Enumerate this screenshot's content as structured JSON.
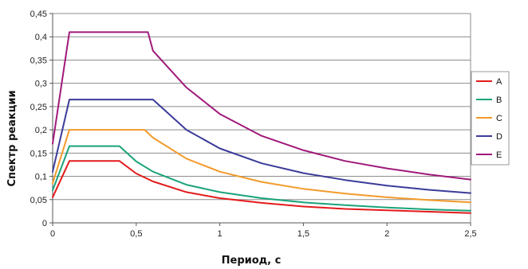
{
  "chart_data": {
    "type": "line",
    "xlabel": "Период, с",
    "ylabel": "Спектр реакции",
    "xlim": [
      0,
      2.5
    ],
    "ylim": [
      0,
      0.45
    ],
    "xticks": [
      0,
      0.5,
      1,
      1.5,
      2,
      2.5
    ],
    "xtick_labels": [
      "0",
      "0,5",
      "1",
      "1,5",
      "2",
      "2,5"
    ],
    "yticks": [
      0,
      0.05,
      0.1,
      0.15,
      0.2,
      0.25,
      0.3,
      0.35,
      0.4,
      0.45
    ],
    "ytick_labels": [
      "0",
      "0,05",
      "0,1",
      "0,15",
      "0,2",
      "0,25",
      "0,3",
      "0,35",
      "0,4",
      "0,45"
    ],
    "grid": "horizontal",
    "legend_position": "right",
    "series": [
      {
        "name": "A",
        "color": "#e31a1c",
        "x": [
          0,
          0.1,
          0.4,
          0.5,
          0.6,
          0.8,
          1.0,
          1.25,
          1.5,
          1.75,
          2.0,
          2.25,
          2.5
        ],
        "y": [
          0.055,
          0.133,
          0.133,
          0.106,
          0.089,
          0.066,
          0.053,
          0.043,
          0.035,
          0.03,
          0.027,
          0.024,
          0.021
        ]
      },
      {
        "name": "B",
        "color": "#1aa37a",
        "x": [
          0,
          0.1,
          0.4,
          0.5,
          0.6,
          0.8,
          1.0,
          1.25,
          1.5,
          1.75,
          2.0,
          2.25,
          2.5
        ],
        "y": [
          0.07,
          0.165,
          0.165,
          0.132,
          0.11,
          0.082,
          0.066,
          0.053,
          0.044,
          0.038,
          0.033,
          0.029,
          0.026
        ]
      },
      {
        "name": "C",
        "color": "#f39a2b",
        "x": [
          0,
          0.1,
          0.55,
          0.6,
          0.8,
          1.0,
          1.25,
          1.5,
          1.75,
          2.0,
          2.25,
          2.5
        ],
        "y": [
          0.085,
          0.2,
          0.2,
          0.183,
          0.138,
          0.11,
          0.088,
          0.073,
          0.063,
          0.055,
          0.049,
          0.044
        ]
      },
      {
        "name": "D",
        "color": "#3b3b9a",
        "x": [
          0,
          0.1,
          0.6,
          0.8,
          1.0,
          1.25,
          1.5,
          1.75,
          2.0,
          2.25,
          2.5
        ],
        "y": [
          0.11,
          0.265,
          0.265,
          0.2,
          0.16,
          0.128,
          0.107,
          0.092,
          0.08,
          0.071,
          0.064
        ]
      },
      {
        "name": "E",
        "color": "#a0197a",
        "x": [
          0,
          0.1,
          0.57,
          0.6,
          0.8,
          1.0,
          1.25,
          1.5,
          1.75,
          2.0,
          2.25,
          2.5
        ],
        "y": [
          0.17,
          0.41,
          0.41,
          0.37,
          0.291,
          0.234,
          0.187,
          0.156,
          0.133,
          0.117,
          0.104,
          0.093
        ]
      }
    ]
  }
}
